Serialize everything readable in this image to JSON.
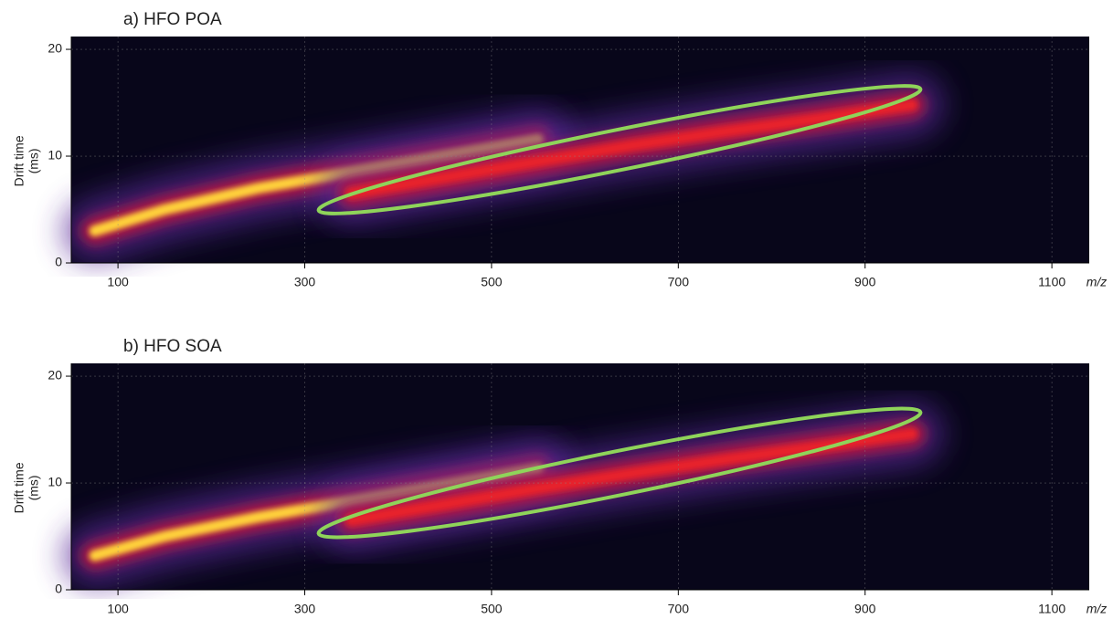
{
  "chart_data": [
    {
      "type": "density",
      "title": "a) HFO POA",
      "xlabel": "m/z",
      "ylabel": [
        "Drift time",
        "(ms)"
      ],
      "x": [
        75,
        150,
        250,
        350,
        450,
        550,
        650,
        750,
        850,
        950
      ],
      "series": [
        {
          "color": "#ffd23a",
          "values": [
            3.0,
            5.0,
            7.0,
            8.5,
            10.0,
            11.5,
            null,
            null,
            null,
            null
          ]
        },
        {
          "color": "#e8242c",
          "values": [
            null,
            null,
            null,
            6.5,
            8.0,
            9.5,
            11.0,
            12.3,
            13.5,
            14.8
          ]
        }
      ],
      "xlim": [
        50,
        1140
      ],
      "ylim": [
        0,
        21.2
      ],
      "xticks": [
        100,
        300,
        500,
        700,
        900,
        1100
      ],
      "yticks": [
        0,
        10,
        20
      ],
      "grid": true
    },
    {
      "type": "density",
      "title": "b) HFO SOA",
      "xlabel": "m/z",
      "ylabel": [
        "Drift time",
        "(ms)"
      ],
      "x": [
        75,
        150,
        250,
        350,
        450,
        550,
        650,
        750,
        850,
        950
      ],
      "series": [
        {
          "color": "#ffd23a",
          "values": [
            3.2,
            5.0,
            6.8,
            8.3,
            9.8,
            11.3,
            null,
            null,
            null,
            null
          ]
        },
        {
          "color": "#e8242c",
          "values": [
            null,
            null,
            null,
            6.5,
            8.0,
            9.5,
            10.9,
            12.2,
            13.4,
            14.6
          ]
        }
      ],
      "xlim": [
        50,
        1140
      ],
      "ylim": [
        0,
        21.2
      ],
      "xticks": [
        100,
        300,
        500,
        700,
        900,
        1100
      ],
      "yticks": [
        0,
        10,
        20
      ],
      "grid": true
    }
  ]
}
